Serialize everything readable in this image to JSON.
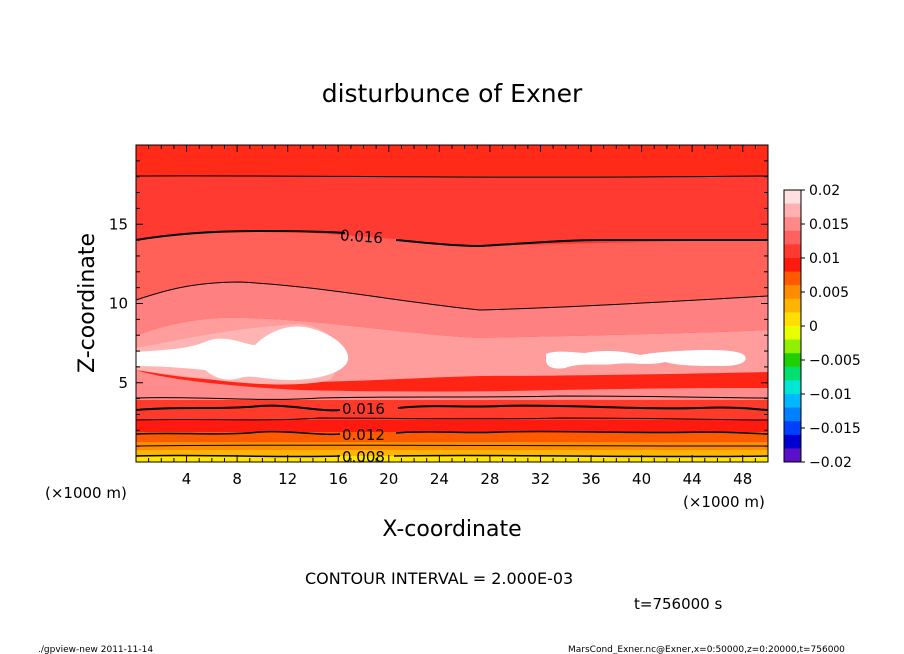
{
  "chart_data": {
    "type": "contour",
    "title": "disturbunce of Exner",
    "xlabel": "X-coordinate",
    "ylabel": "Z-coordinate",
    "x_unit_left": "(×1000 m)",
    "x_unit_right": "(×1000 m)",
    "xlim": [
      0,
      50
    ],
    "ylim": [
      0,
      20
    ],
    "x_ticks": [
      "4",
      "8",
      "12",
      "16",
      "20",
      "24",
      "28",
      "32",
      "36",
      "40",
      "44",
      "48"
    ],
    "y_ticks": [
      "5",
      "10",
      "15"
    ],
    "colorbar": {
      "levels": [
        "0.02",
        "0.015",
        "0.01",
        "0.005",
        "0",
        "−0.005",
        "−0.01",
        "−0.015",
        "−0.02"
      ],
      "colors": [
        "#ffe0e0",
        "#ffb0b0",
        "#ff8888",
        "#ff6060",
        "#ff3a30",
        "#ff1a10",
        "#ff5a00",
        "#ff8c00",
        "#ffb400",
        "#ffde00",
        "#e8ff00",
        "#90f000",
        "#20d000",
        "#00e070",
        "#00e6d6",
        "#00b8ff",
        "#0080ff",
        "#0040ff",
        "#0000d0",
        "#5a10c8"
      ]
    },
    "contour_labels": [
      "0.016",
      "0.016",
      "0.012",
      "0.008"
    ],
    "contour_interval": "CONTOUR INTERVAL = 2.000E-03",
    "time_label": "t=756000 s"
  },
  "footer": {
    "left": "./gpview-new   2011-11-14",
    "right": "MarsCond_Exner.nc@Exner,x=0:50000,z=0:20000,t=756000"
  }
}
